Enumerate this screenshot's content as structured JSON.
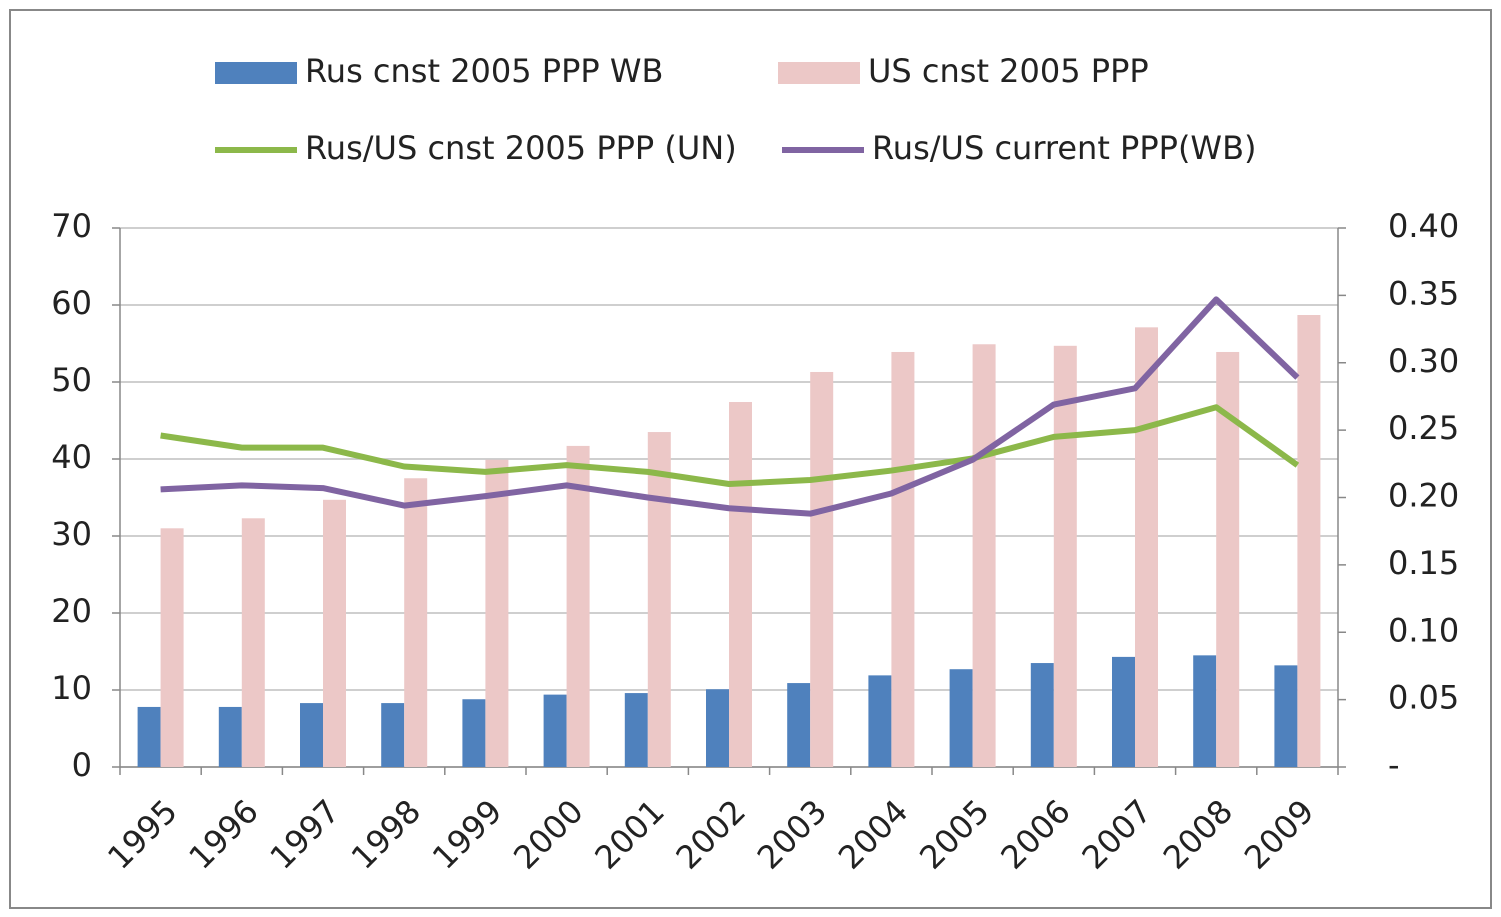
{
  "chart_data": {
    "type": "bar",
    "categories": [
      "1995",
      "1996",
      "1997",
      "1998",
      "1999",
      "2000",
      "2001",
      "2002",
      "2003",
      "2004",
      "2005",
      "2006",
      "2007",
      "2008",
      "2009"
    ],
    "series": [
      {
        "name": "Rus cnst 2005 PPP WB",
        "type": "bar",
        "color": "#4f81bd",
        "values": [
          7.8,
          7.8,
          8.3,
          8.3,
          8.8,
          9.4,
          9.6,
          10.1,
          10.9,
          11.9,
          12.7,
          13.5,
          14.3,
          14.5,
          13.2
        ]
      },
      {
        "name": "US cnst 2005 PPP",
        "type": "bar",
        "color": "#ecc8c7",
        "values": [
          31.0,
          32.3,
          34.7,
          37.5,
          39.9,
          41.7,
          43.5,
          47.4,
          51.3,
          53.9,
          54.9,
          54.7,
          57.1,
          53.9,
          58.7
        ]
      },
      {
        "name": "Rus/US cnst 2005 PPP (UN)",
        "type": "line",
        "axis": "y2",
        "color": "#8cb84a",
        "values": [
          0.246,
          0.237,
          0.237,
          0.223,
          0.219,
          0.224,
          0.219,
          0.21,
          0.213,
          0.22,
          0.229,
          0.245,
          0.25,
          0.267,
          0.224
        ]
      },
      {
        "name": "Rus/US current PPP(WB)",
        "type": "line",
        "axis": "y2",
        "color": "#8064a2",
        "values": [
          0.206,
          0.209,
          0.207,
          0.194,
          0.201,
          0.209,
          0.2,
          0.192,
          0.188,
          0.203,
          0.228,
          0.269,
          0.281,
          0.347,
          0.289
        ]
      }
    ],
    "ylim": [
      0,
      70
    ],
    "yticks": [
      0,
      10,
      20,
      30,
      40,
      50,
      60,
      70
    ],
    "y2lim": [
      0,
      0.4
    ],
    "y2ticks": [
      {
        "value": 0,
        "label": "-"
      },
      0.05,
      {
        "value": 0.1,
        "label": "0.10"
      },
      0.15,
      {
        "value": 0.2,
        "label": "0.20"
      },
      0.25,
      {
        "value": 0.3,
        "label": "0.30"
      },
      0.35,
      {
        "value": 0.4,
        "label": "0.40"
      }
    ],
    "grid": true,
    "legend": "top"
  }
}
